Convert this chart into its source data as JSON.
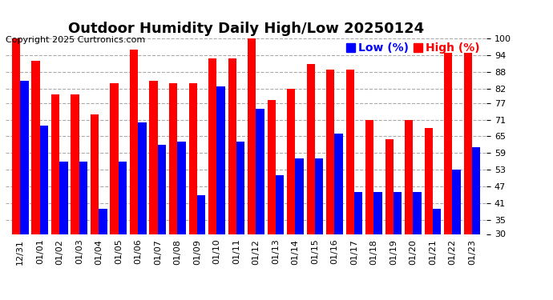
{
  "title": "Outdoor Humidity Daily High/Low 20250124",
  "copyright": "Copyright 2025 Curtronics.com",
  "legend_low": "Low (%)",
  "legend_high": "High (%)",
  "dates": [
    "12/31",
    "01/01",
    "01/02",
    "01/03",
    "01/04",
    "01/05",
    "01/06",
    "01/07",
    "01/08",
    "01/09",
    "01/10",
    "01/11",
    "01/12",
    "01/13",
    "01/14",
    "01/15",
    "01/16",
    "01/17",
    "01/18",
    "01/19",
    "01/20",
    "01/21",
    "01/22",
    "01/23"
  ],
  "high": [
    100,
    92,
    80,
    80,
    73,
    84,
    96,
    85,
    84,
    84,
    93,
    93,
    100,
    78,
    82,
    91,
    89,
    89,
    71,
    64,
    71,
    68,
    95,
    95
  ],
  "low": [
    85,
    69,
    56,
    56,
    39,
    56,
    70,
    62,
    63,
    44,
    83,
    63,
    75,
    51,
    57,
    57,
    66,
    45,
    45,
    45,
    45,
    39,
    53,
    61
  ],
  "bar_width": 0.42,
  "high_color": "#ff0000",
  "low_color": "#0000ff",
  "background_color": "#ffffff",
  "grid_color": "#aaaaaa",
  "yticks": [
    30,
    35,
    41,
    47,
    53,
    59,
    65,
    71,
    77,
    82,
    88,
    94,
    100
  ],
  "ymin": 30,
  "ymax": 101,
  "ybase": 30,
  "title_fontsize": 13,
  "tick_fontsize": 8,
  "legend_fontsize": 10,
  "copyright_fontsize": 8
}
